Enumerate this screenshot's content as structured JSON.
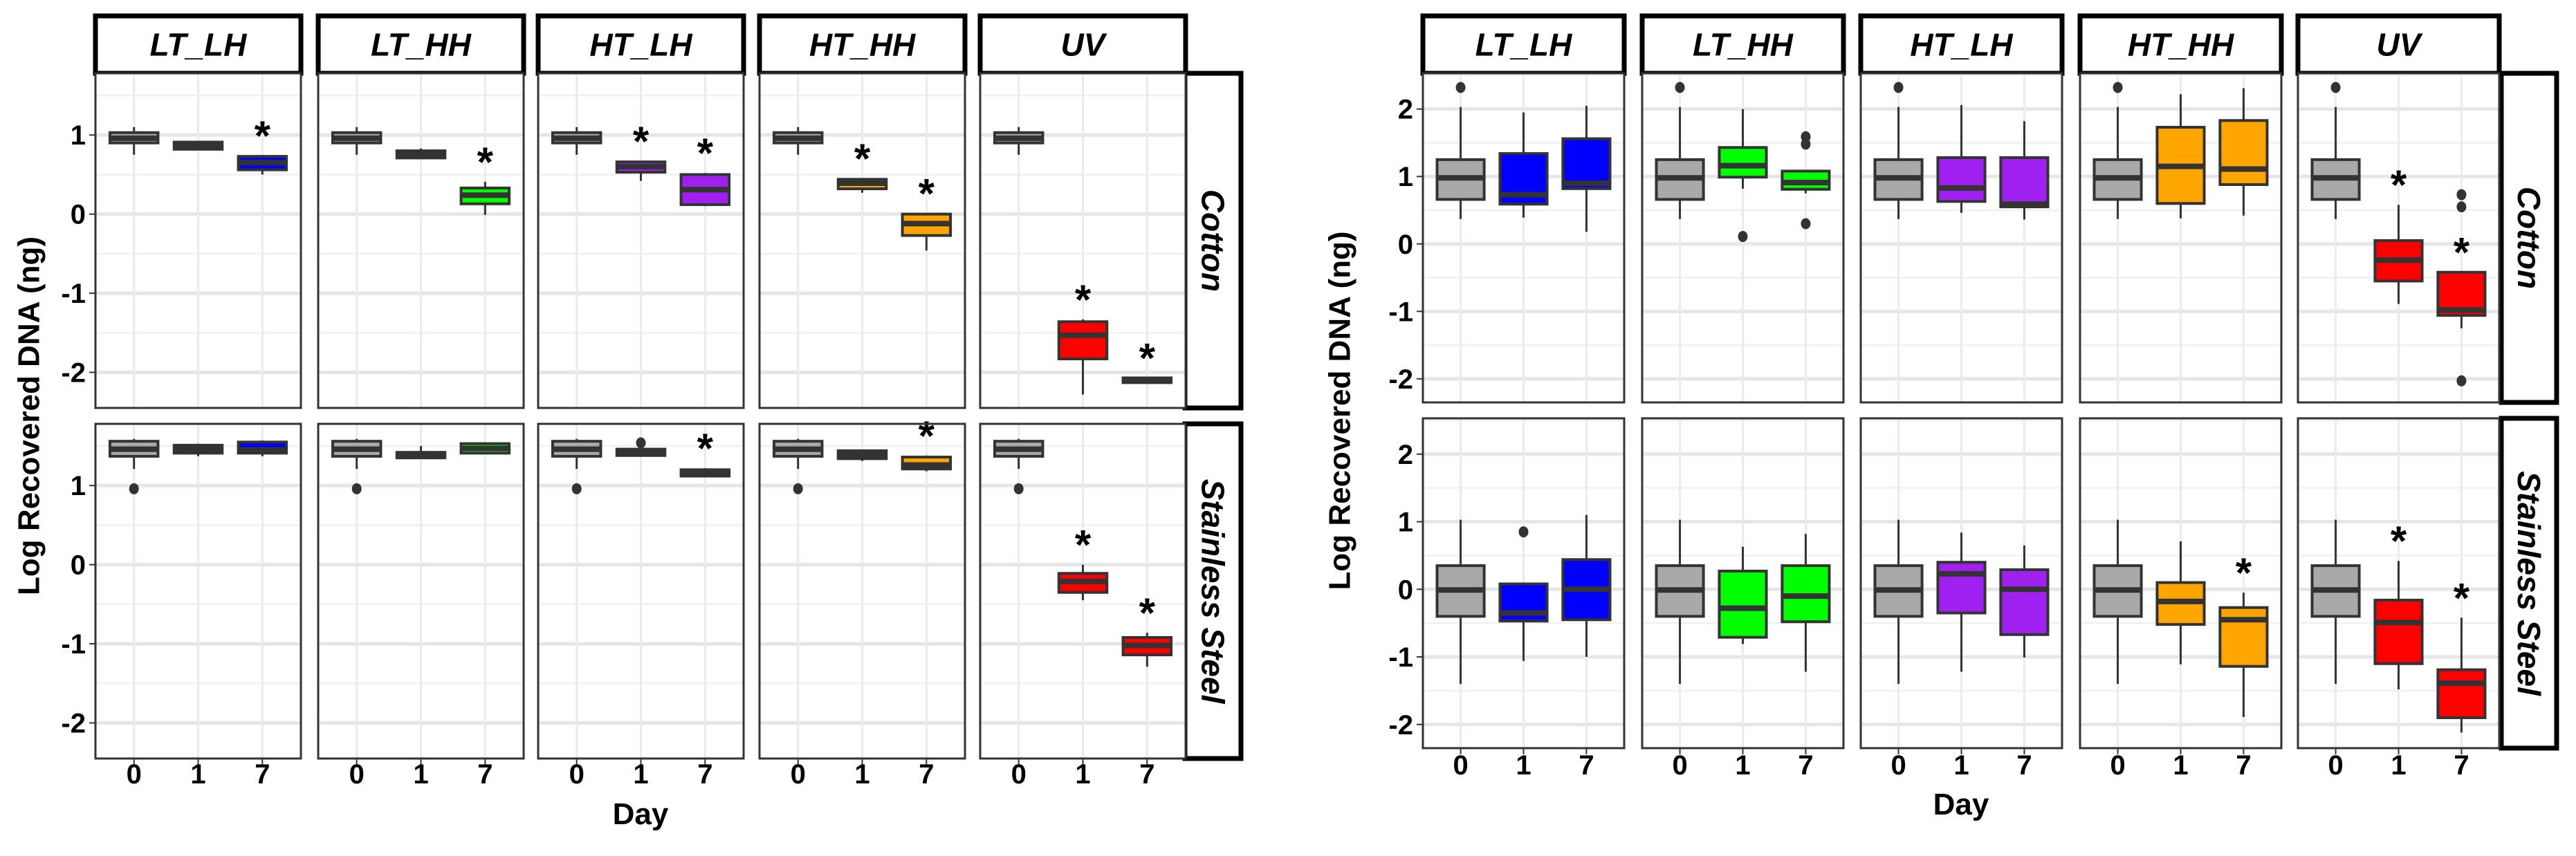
{
  "colors": {
    "day0": "#a9a9a9",
    "LT_LH": "#0000ff",
    "LT_HH": "#00ff00",
    "HT_LH": "#a020f0",
    "HT_HH": "#ffa500",
    "UV": "#ff0000"
  },
  "chart_data": [
    {
      "type": "box",
      "ylabel": "Log Recovered DNA (ng)",
      "xlabel": "Day",
      "categories": [
        "0",
        "1",
        "7"
      ],
      "facets": [
        "LT_LH",
        "LT_HH",
        "HT_LH",
        "HT_HH",
        "UV"
      ],
      "ylim": [
        -2.45,
        1.78
      ],
      "yticks": [
        "-2",
        "-1",
        "0",
        "1"
      ],
      "grid": true,
      "significance_marker": "*",
      "rows": [
        {
          "name": "Cotton",
          "cells": [
            [
              {
                "lo": 0.75,
                "q1": 0.9,
                "med": 0.96,
                "q3": 1.03,
                "hi": 1.1,
                "out": [],
                "sig": false
              },
              {
                "lo": 0.81,
                "q1": 0.82,
                "med": 0.86,
                "q3": 0.91,
                "hi": 0.92,
                "out": [],
                "sig": false
              },
              {
                "lo": 0.5,
                "q1": 0.56,
                "med": 0.65,
                "q3": 0.73,
                "hi": 0.74,
                "out": [],
                "sig": true
              }
            ],
            [
              {
                "lo": 0.75,
                "q1": 0.9,
                "med": 0.96,
                "q3": 1.03,
                "hi": 1.1,
                "out": [],
                "sig": false
              },
              {
                "lo": 0.7,
                "q1": 0.71,
                "med": 0.76,
                "q3": 0.8,
                "hi": 0.83,
                "out": [],
                "sig": false
              },
              {
                "lo": -0.01,
                "q1": 0.13,
                "med": 0.24,
                "q3": 0.33,
                "hi": 0.41,
                "out": [],
                "sig": true
              }
            ],
            [
              {
                "lo": 0.75,
                "q1": 0.9,
                "med": 0.96,
                "q3": 1.03,
                "hi": 1.1,
                "out": [],
                "sig": false
              },
              {
                "lo": 0.42,
                "q1": 0.53,
                "med": 0.6,
                "q3": 0.66,
                "hi": 0.67,
                "out": [],
                "sig": true
              },
              {
                "lo": 0.1,
                "q1": 0.12,
                "med": 0.31,
                "q3": 0.5,
                "hi": 0.52,
                "out": [],
                "sig": true
              }
            ],
            [
              {
                "lo": 0.75,
                "q1": 0.9,
                "med": 0.96,
                "q3": 1.03,
                "hi": 1.1,
                "out": [],
                "sig": false
              },
              {
                "lo": 0.27,
                "q1": 0.32,
                "med": 0.39,
                "q3": 0.44,
                "hi": 0.45,
                "out": [],
                "sig": true
              },
              {
                "lo": -0.46,
                "q1": -0.27,
                "med": -0.12,
                "q3": 0.0,
                "hi": 0.01,
                "out": [],
                "sig": true
              }
            ],
            [
              {
                "lo": 0.75,
                "q1": 0.9,
                "med": 0.96,
                "q3": 1.03,
                "hi": 1.1,
                "out": [],
                "sig": false
              },
              {
                "lo": -2.28,
                "q1": -1.83,
                "med": -1.53,
                "q3": -1.36,
                "hi": -1.33,
                "out": [],
                "sig": true
              },
              {
                "lo": -2.13,
                "q1": -2.13,
                "med": -2.1,
                "q3": -2.07,
                "hi": -2.07,
                "out": [],
                "sig": true
              }
            ]
          ]
        },
        {
          "name": "Stainless Steel",
          "cells": [
            [
              {
                "lo": 1.21,
                "q1": 1.37,
                "med": 1.46,
                "q3": 1.56,
                "hi": 1.59,
                "out": [
                  0.96
                ],
                "sig": false
              },
              {
                "lo": 1.37,
                "q1": 1.41,
                "med": 1.46,
                "q3": 1.51,
                "hi": 1.53,
                "out": [],
                "sig": false
              },
              {
                "lo": 1.37,
                "q1": 1.41,
                "med": 1.45,
                "q3": 1.55,
                "hi": 1.57,
                "out": [],
                "sig": false
              }
            ],
            [
              {
                "lo": 1.21,
                "q1": 1.37,
                "med": 1.46,
                "q3": 1.56,
                "hi": 1.59,
                "out": [
                  0.96
                ],
                "sig": false
              },
              {
                "lo": 1.35,
                "q1": 1.35,
                "med": 1.38,
                "q3": 1.42,
                "hi": 1.5,
                "out": [],
                "sig": false
              },
              {
                "lo": 1.41,
                "q1": 1.41,
                "med": 1.47,
                "q3": 1.53,
                "hi": 1.53,
                "out": [],
                "sig": false
              }
            ],
            [
              {
                "lo": 1.21,
                "q1": 1.37,
                "med": 1.46,
                "q3": 1.56,
                "hi": 1.59,
                "out": [
                  0.96
                ],
                "sig": false
              },
              {
                "lo": 1.38,
                "q1": 1.38,
                "med": 1.42,
                "q3": 1.46,
                "hi": 1.46,
                "out": [
                  1.54
                ],
                "sig": false
              },
              {
                "lo": 1.12,
                "q1": 1.12,
                "med": 1.15,
                "q3": 1.2,
                "hi": 1.22,
                "out": [],
                "sig": true
              }
            ],
            [
              {
                "lo": 1.21,
                "q1": 1.37,
                "med": 1.46,
                "q3": 1.56,
                "hi": 1.59,
                "out": [
                  0.96
                ],
                "sig": false
              },
              {
                "lo": 1.31,
                "q1": 1.34,
                "med": 1.39,
                "q3": 1.44,
                "hi": 1.44,
                "out": [],
                "sig": false
              },
              {
                "lo": 1.18,
                "q1": 1.21,
                "med": 1.26,
                "q3": 1.36,
                "hi": 1.38,
                "out": [],
                "sig": true
              }
            ],
            [
              {
                "lo": 1.21,
                "q1": 1.37,
                "med": 1.46,
                "q3": 1.56,
                "hi": 1.59,
                "out": [
                  0.96
                ],
                "sig": false
              },
              {
                "lo": -0.45,
                "q1": -0.35,
                "med": -0.21,
                "q3": -0.11,
                "hi": 0.0,
                "out": [],
                "sig": true
              },
              {
                "lo": -1.29,
                "q1": -1.14,
                "med": -1.02,
                "q3": -0.92,
                "hi": -0.86,
                "out": [],
                "sig": true
              }
            ]
          ]
        }
      ]
    },
    {
      "type": "box",
      "ylabel": "Log Recovered DNA (ng)",
      "xlabel": "Day",
      "categories": [
        "0",
        "1",
        "7"
      ],
      "facets": [
        "LT_LH",
        "LT_HH",
        "HT_LH",
        "HT_HH",
        "UV"
      ],
      "ylim": [
        -2.35,
        2.53
      ],
      "yticks": [
        "-2",
        "-1",
        "0",
        "1",
        "2"
      ],
      "grid": true,
      "significance_marker": "*",
      "rows": [
        {
          "name": "Cotton",
          "cells": [
            [
              {
                "lo": 0.37,
                "q1": 0.66,
                "med": 0.98,
                "q3": 1.25,
                "hi": 2.03,
                "out": [
                  2.32
                ],
                "sig": false
              },
              {
                "lo": 0.39,
                "q1": 0.59,
                "med": 0.73,
                "q3": 1.34,
                "hi": 1.95,
                "out": [],
                "sig": false
              },
              {
                "lo": 0.18,
                "q1": 0.82,
                "med": 0.9,
                "q3": 1.56,
                "hi": 2.05,
                "out": [],
                "sig": false
              }
            ],
            [
              {
                "lo": 0.37,
                "q1": 0.66,
                "med": 0.98,
                "q3": 1.25,
                "hi": 2.03,
                "out": [
                  2.32
                ],
                "sig": false
              },
              {
                "lo": 0.82,
                "q1": 0.99,
                "med": 1.16,
                "q3": 1.43,
                "hi": 2.0,
                "out": [
                  0.11
                ],
                "sig": false
              },
              {
                "lo": 0.75,
                "q1": 0.81,
                "med": 0.91,
                "q3": 1.08,
                "hi": 1.1,
                "out": [
                  1.59,
                  1.48,
                  0.3
                ],
                "sig": false
              }
            ],
            [
              {
                "lo": 0.37,
                "q1": 0.66,
                "med": 0.98,
                "q3": 1.25,
                "hi": 2.03,
                "out": [
                  2.32
                ],
                "sig": false
              },
              {
                "lo": 0.46,
                "q1": 0.63,
                "med": 0.83,
                "q3": 1.28,
                "hi": 2.06,
                "out": [],
                "sig": false
              },
              {
                "lo": 0.36,
                "q1": 0.55,
                "med": 0.59,
                "q3": 1.28,
                "hi": 1.82,
                "out": [],
                "sig": false
              }
            ],
            [
              {
                "lo": 0.37,
                "q1": 0.66,
                "med": 0.98,
                "q3": 1.25,
                "hi": 2.03,
                "out": [
                  2.32
                ],
                "sig": false
              },
              {
                "lo": 0.38,
                "q1": 0.6,
                "med": 1.15,
                "q3": 1.73,
                "hi": 2.22,
                "out": [],
                "sig": false
              },
              {
                "lo": 0.42,
                "q1": 0.88,
                "med": 1.11,
                "q3": 1.83,
                "hi": 2.31,
                "out": [],
                "sig": false
              }
            ],
            [
              {
                "lo": 0.37,
                "q1": 0.66,
                "med": 0.98,
                "q3": 1.25,
                "hi": 2.03,
                "out": [
                  2.32
                ],
                "sig": false
              },
              {
                "lo": -0.89,
                "q1": -0.55,
                "med": -0.24,
                "q3": 0.05,
                "hi": 0.58,
                "out": [],
                "sig": true
              },
              {
                "lo": -1.25,
                "q1": -1.06,
                "med": -0.98,
                "q3": -0.42,
                "hi": -0.42,
                "out": [
                  0.73,
                  0.55,
                  -2.03
                ],
                "sig": true
              }
            ]
          ]
        },
        {
          "name": "Stainless Steel",
          "cells": [
            [
              {
                "lo": -1.4,
                "q1": -0.4,
                "med": -0.01,
                "q3": 0.35,
                "hi": 1.03,
                "out": [],
                "sig": false
              },
              {
                "lo": -1.06,
                "q1": -0.47,
                "med": -0.35,
                "q3": 0.08,
                "hi": 0.09,
                "out": [
                  0.85
                ],
                "sig": false
              },
              {
                "lo": -1.0,
                "q1": -0.45,
                "med": 0.0,
                "q3": 0.44,
                "hi": 1.1,
                "out": [],
                "sig": false
              }
            ],
            [
              {
                "lo": -1.4,
                "q1": -0.4,
                "med": -0.01,
                "q3": 0.35,
                "hi": 1.03,
                "out": [],
                "sig": false
              },
              {
                "lo": -0.81,
                "q1": -0.71,
                "med": -0.28,
                "q3": 0.27,
                "hi": 0.63,
                "out": [],
                "sig": false
              },
              {
                "lo": -1.22,
                "q1": -0.48,
                "med": -0.1,
                "q3": 0.35,
                "hi": 0.82,
                "out": [],
                "sig": false
              }
            ],
            [
              {
                "lo": -1.4,
                "q1": -0.4,
                "med": -0.01,
                "q3": 0.35,
                "hi": 1.03,
                "out": [],
                "sig": false
              },
              {
                "lo": -1.22,
                "q1": -0.35,
                "med": 0.23,
                "q3": 0.4,
                "hi": 0.84,
                "out": [],
                "sig": false
              },
              {
                "lo": -1.01,
                "q1": -0.67,
                "med": 0.0,
                "q3": 0.29,
                "hi": 0.65,
                "out": [],
                "sig": false
              }
            ],
            [
              {
                "lo": -1.4,
                "q1": -0.4,
                "med": -0.01,
                "q3": 0.35,
                "hi": 1.03,
                "out": [],
                "sig": false
              },
              {
                "lo": -1.11,
                "q1": -0.52,
                "med": -0.18,
                "q3": 0.1,
                "hi": 0.71,
                "out": [],
                "sig": false
              },
              {
                "lo": -1.89,
                "q1": -1.14,
                "med": -0.45,
                "q3": -0.27,
                "hi": -0.05,
                "out": [],
                "sig": true
              }
            ],
            [
              {
                "lo": -1.4,
                "q1": -0.4,
                "med": -0.01,
                "q3": 0.35,
                "hi": 1.03,
                "out": [],
                "sig": false
              },
              {
                "lo": -1.48,
                "q1": -1.1,
                "med": -0.49,
                "q3": -0.16,
                "hi": 0.42,
                "out": [],
                "sig": true
              },
              {
                "lo": -2.12,
                "q1": -1.9,
                "med": -1.39,
                "q3": -1.19,
                "hi": -0.42,
                "out": [],
                "sig": true
              }
            ]
          ]
        }
      ]
    }
  ]
}
